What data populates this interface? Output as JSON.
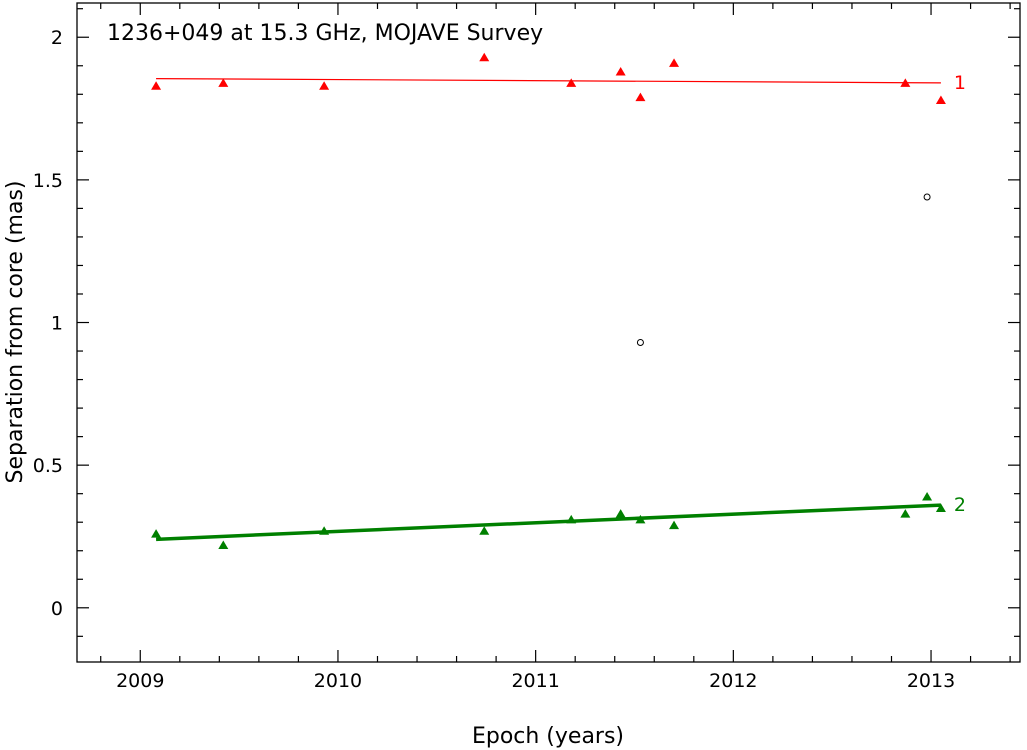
{
  "chart_data": {
    "type": "scatter",
    "title": "1236+049 at 15.3 GHz, MOJAVE Survey",
    "xlabel": "Epoch (years)",
    "ylabel": "Separation from core (mas)",
    "xlim": [
      2008.68,
      2013.45
    ],
    "ylim": [
      -0.19,
      2.12
    ],
    "xticks": [
      2009,
      2010,
      2011,
      2012,
      2013
    ],
    "xtick_labels": [
      "2009",
      "2010",
      "2011",
      "2012",
      "2013"
    ],
    "yticks": [
      0,
      0.5,
      1,
      1.5,
      2
    ],
    "ytick_labels": [
      "0",
      "0.5",
      "1",
      "1.5",
      "2"
    ],
    "grid": false,
    "series": [
      {
        "name": "1",
        "color": "#ff0000",
        "marker": "triangle",
        "points": [
          {
            "x": 2009.08,
            "y": 1.83
          },
          {
            "x": 2009.42,
            "y": 1.84
          },
          {
            "x": 2009.93,
            "y": 1.83
          },
          {
            "x": 2010.74,
            "y": 1.93
          },
          {
            "x": 2011.18,
            "y": 1.84
          },
          {
            "x": 2011.43,
            "y": 1.88
          },
          {
            "x": 2011.53,
            "y": 1.79
          },
          {
            "x": 2011.7,
            "y": 1.91
          },
          {
            "x": 2012.87,
            "y": 1.84
          },
          {
            "x": 2013.05,
            "y": 1.78
          }
        ],
        "fit": {
          "x": [
            2009.08,
            2013.05
          ],
          "y": [
            1.855,
            1.84
          ],
          "line_width": "thin"
        }
      },
      {
        "name": "2",
        "color": "#008000",
        "marker": "triangle",
        "points": [
          {
            "x": 2009.08,
            "y": 0.26
          },
          {
            "x": 2009.42,
            "y": 0.22
          },
          {
            "x": 2009.93,
            "y": 0.27
          },
          {
            "x": 2010.74,
            "y": 0.27
          },
          {
            "x": 2011.18,
            "y": 0.31
          },
          {
            "x": 2011.43,
            "y": 0.33
          },
          {
            "x": 2011.53,
            "y": 0.31
          },
          {
            "x": 2011.7,
            "y": 0.29
          },
          {
            "x": 2012.87,
            "y": 0.33
          },
          {
            "x": 2012.98,
            "y": 0.39
          },
          {
            "x": 2013.05,
            "y": 0.35
          }
        ],
        "fit": {
          "x": [
            2009.08,
            2013.05
          ],
          "y": [
            0.24,
            0.36
          ],
          "line_width": "thick"
        }
      },
      {
        "name": "",
        "color": "#000000",
        "marker": "open-circle",
        "points": [
          {
            "x": 2011.53,
            "y": 0.93
          },
          {
            "x": 2012.98,
            "y": 1.44
          }
        ]
      }
    ]
  }
}
